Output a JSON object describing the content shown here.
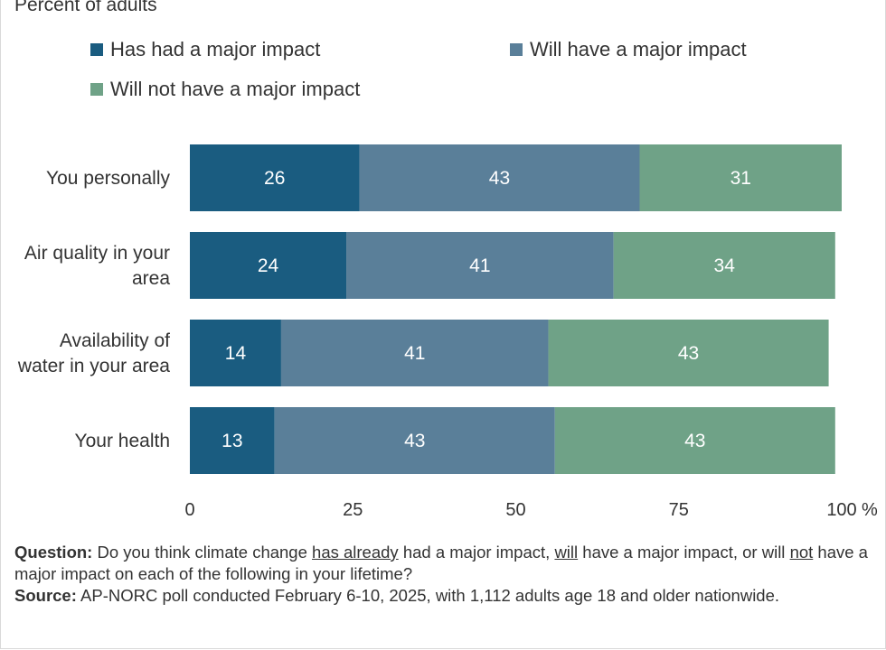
{
  "subtitle": "Percent of adults",
  "legend": [
    {
      "label": "Has had a major impact",
      "color": "#1a5c80"
    },
    {
      "label": "Will have a major impact",
      "color": "#5a7f99"
    },
    {
      "label": "Will not have a major impact",
      "color": "#6fa287"
    }
  ],
  "chart_data": {
    "type": "bar",
    "orientation": "horizontal",
    "stacked": true,
    "categories": [
      [
        "You personally"
      ],
      [
        "Air quality in your",
        "area"
      ],
      [
        "Availability of",
        "water in your area"
      ],
      [
        "Your health"
      ]
    ],
    "series": [
      {
        "name": "Has had a major impact",
        "values": [
          26,
          24,
          14,
          13
        ],
        "color": "#1a5c80"
      },
      {
        "name": "Will have a major impact",
        "values": [
          43,
          41,
          41,
          43
        ],
        "color": "#5a7f99"
      },
      {
        "name": "Will not have a major impact",
        "values": [
          31,
          34,
          43,
          43
        ],
        "color": "#6fa287"
      }
    ],
    "xlim": [
      0,
      100
    ],
    "xticks": [
      "0",
      "25",
      "50",
      "75",
      "100"
    ],
    "x_unit": "%",
    "grid": false,
    "legend_position": "top"
  },
  "footnote": {
    "question_label": "Question:",
    "q_part1": " Do you think climate change ",
    "q_u1": "has already",
    "q_part2": " had a major impact, ",
    "q_u2": "will",
    "q_part3": " have a major impact, or will ",
    "q_u3": "not",
    "q_part4": " have a major impact on each of the following in your lifetime?",
    "source_label": "Source:",
    "source_text": " AP-NORC poll conducted February 6-10, 2025, with 1,112 adults age 18 and older nationwide."
  }
}
